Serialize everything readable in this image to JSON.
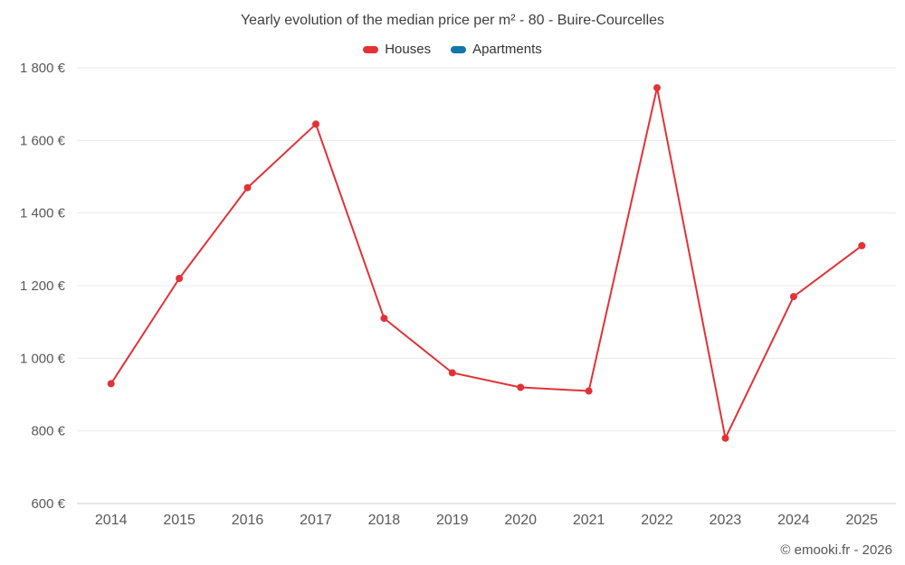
{
  "title": "Yearly evolution of the median price per m² - 80 - Buire-Courcelles",
  "legend": [
    {
      "label": "Houses",
      "color": "#e23237"
    },
    {
      "label": "Apartments",
      "color": "#1178a9"
    }
  ],
  "footer": "© emooki.fr - 2026",
  "colors": {
    "grid": "#e8e8e8",
    "axis_line": "#cccccc",
    "tick_label": "#595959"
  },
  "chart_data": {
    "type": "line",
    "title": "Yearly evolution of the median price per m² - 80 - Buire-Courcelles",
    "x": [
      2014,
      2015,
      2016,
      2017,
      2018,
      2019,
      2020,
      2021,
      2022,
      2023,
      2024,
      2025
    ],
    "series": [
      {
        "name": "Houses",
        "color": "#e23237",
        "values": [
          930,
          1220,
          1470,
          1645,
          1110,
          960,
          920,
          910,
          1745,
          780,
          1170,
          1310
        ]
      },
      {
        "name": "Apartments",
        "color": "#1178a9",
        "values": []
      }
    ],
    "xlabel": "",
    "ylabel": "",
    "ylim": [
      600,
      1800
    ],
    "ytick_step": 200,
    "ytick_labels": [
      "600 €",
      "800 €",
      "1 000 €",
      "1 200 €",
      "1 400 €",
      "1 600 €",
      "1 800 €"
    ],
    "grid": true,
    "legend_position": "top"
  }
}
